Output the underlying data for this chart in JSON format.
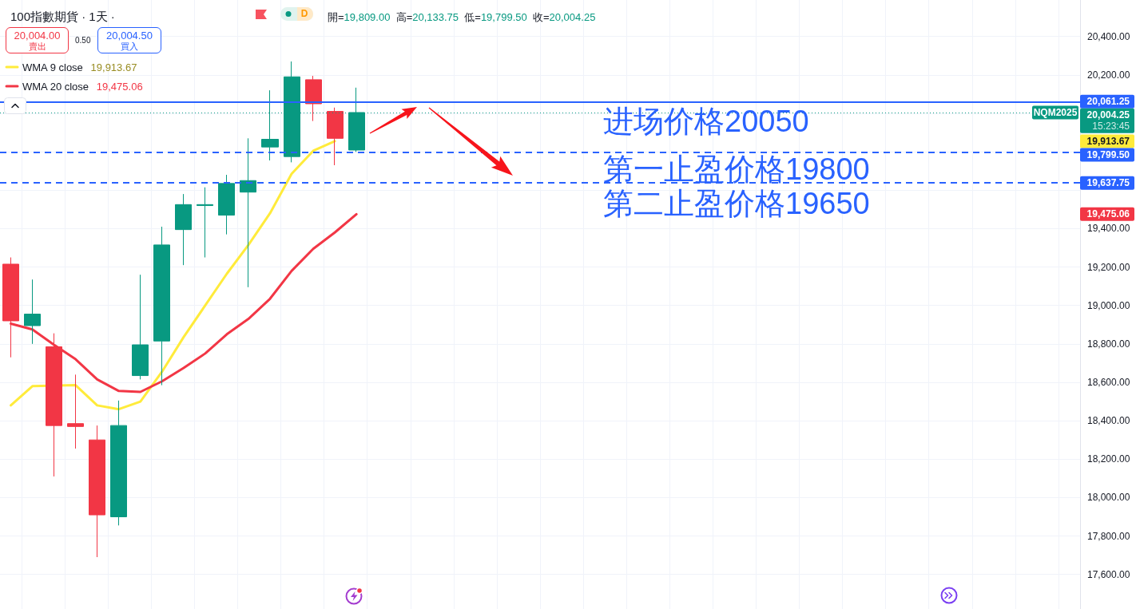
{
  "chart_data": {
    "type": "candlestick",
    "title": "100指數期貨 · 1天 ·",
    "subtitle": "開=19,809.00 高=20,133.75 低=19,799.50 收=20,004.25",
    "categories": [
      null,
      null,
      null,
      null,
      null,
      null,
      null,
      null,
      null,
      null,
      null,
      null,
      null,
      null,
      null,
      null,
      null,
      null,
      null,
      null,
      null,
      null,
      null,
      null,
      null,
      null,
      null,
      null,
      null,
      null,
      null,
      null,
      null,
      null,
      null,
      null,
      null,
      null,
      null,
      null,
      null,
      null,
      null,
      null,
      null,
      null,
      null,
      null,
      null,
      null
    ],
    "ohlc": [
      [
        19215,
        19250,
        18730,
        18920
      ],
      [
        18895,
        19135,
        18800,
        18955
      ],
      [
        18785,
        18855,
        18110,
        18375
      ],
      [
        18385,
        18640,
        18255,
        18370
      ],
      [
        18300,
        18375,
        17690,
        17910
      ],
      [
        17900,
        18505,
        17855,
        18375
      ],
      [
        18635,
        19160,
        18615,
        18795
      ],
      [
        18815,
        19410,
        18585,
        19315
      ],
      [
        19395,
        19580,
        19210,
        19525
      ],
      [
        19520,
        19615,
        19250,
        19525
      ],
      [
        19470,
        19680,
        19370,
        19635
      ],
      [
        19590,
        19870,
        19095,
        19650
      ],
      [
        19825,
        20120,
        19755,
        19865
      ],
      [
        19775,
        20270,
        19745,
        20190
      ],
      [
        20175,
        20195,
        19960,
        20050
      ],
      [
        20010,
        20030,
        19730,
        19870
      ],
      [
        19809.0,
        20133.75,
        19799.5,
        20004.25
      ],
      null,
      null,
      null,
      null,
      null,
      null,
      null,
      null,
      null,
      null,
      null,
      null,
      null,
      null,
      null,
      null,
      null,
      null,
      null,
      null,
      null,
      null,
      null,
      null,
      null,
      null,
      null,
      null,
      null,
      null,
      null,
      null,
      null
    ],
    "series": [
      {
        "name": "WMA 9 close",
        "type": "line",
        "color": "#ffeb3b",
        "values": [
          18480,
          18580,
          null,
          18585,
          18480,
          18460,
          18500,
          18655,
          18835,
          19000,
          19165,
          19315,
          19480,
          19685,
          19805,
          19855,
          null,
          null,
          null,
          null,
          null,
          null,
          null,
          null,
          null,
          null,
          null,
          null,
          null,
          null,
          null,
          null,
          null,
          null,
          null,
          null,
          null,
          null,
          null,
          null,
          null,
          null,
          null,
          null,
          null,
          null,
          null,
          null,
          null,
          null
        ]
      },
      {
        "name": "WMA 20 close",
        "type": "line",
        "color": "#f23645",
        "values": [
          18905,
          18875,
          18795,
          18720,
          18615,
          18555,
          18550,
          18605,
          18675,
          18750,
          18850,
          18930,
          19035,
          19180,
          19295,
          19380,
          19475.06,
          null,
          null,
          null,
          null,
          null,
          null,
          null,
          null,
          null,
          null,
          null,
          null,
          null,
          null,
          null,
          null,
          null,
          null,
          null,
          null,
          null,
          null,
          null,
          null,
          null,
          null,
          null,
          null,
          null,
          null,
          null,
          null,
          null
        ]
      }
    ],
    "marker": "none",
    "legend": "top left",
    "grid": true,
    "tick_labels": "y",
    "ylim": [
      17420,
      20590
    ],
    "yticks": [
      {
        "value": 17600,
        "label": "17,600.00"
      },
      {
        "value": 17800,
        "label": "17,800.00"
      },
      {
        "value": 18000,
        "label": "18,000.00"
      },
      {
        "value": 18200,
        "label": "18,200.00"
      },
      {
        "value": 18400,
        "label": "18,400.00"
      },
      {
        "value": 18600,
        "label": "18,600.00"
      },
      {
        "value": 18800,
        "label": "18,800.00"
      },
      {
        "value": 19000,
        "label": "19,000.00"
      },
      {
        "value": 19200,
        "label": "19,200.00"
      },
      {
        "value": 19400,
        "label": "19,400.00"
      },
      {
        "value": 19600,
        "label": null
      },
      {
        "value": 19800,
        "label": null
      },
      {
        "value": 20000,
        "label": null
      },
      {
        "value": 20200,
        "label": "20,200.00"
      },
      {
        "value": 20400,
        "label": "20,400.00"
      }
    ],
    "ref_lines": [
      {
        "axis": "y",
        "value": 20061.25,
        "label": "20,061.25",
        "color": "#2962ff",
        "line_style": "solid"
      },
      {
        "axis": "y",
        "value": 20004.25,
        "label": "20,004.25",
        "color": "#089981",
        "line_style": "dotted"
      },
      {
        "axis": "y",
        "value": 19799.5,
        "label": "19,799.50",
        "color": "#2962ff",
        "line_style": "dashed"
      },
      {
        "axis": "y",
        "value": 19637.75,
        "label": "19,637.75",
        "color": "#2962ff",
        "line_style": "dashed"
      }
    ],
    "annotations": [
      "20,004.00",
      "賣出",
      "0.50",
      "20,004.50",
      "買入",
      "19,913.67",
      "19,475.06",
      "D",
      "进场价格20050",
      "第一止盈价格19800",
      "第二止盈价格19650",
      "19,913.67",
      "19,475.06",
      {
        "text": "NQM2025",
        "y": 20004.25
      },
      "15:23:45"
    ]
  }
}
